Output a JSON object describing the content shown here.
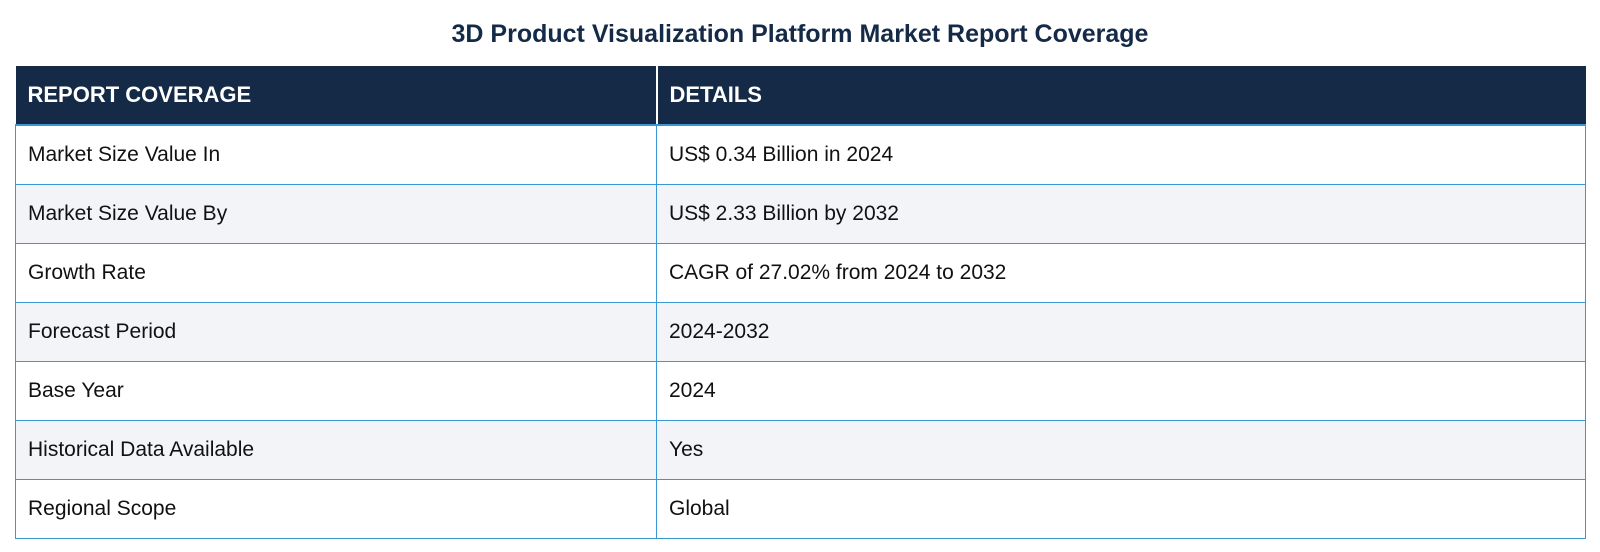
{
  "title": "3D Product Visualization Platform Market Report Coverage",
  "table": {
    "headers": [
      "REPORT COVERAGE",
      "DETAILS"
    ],
    "rows": [
      [
        "Market Size Value In",
        "US$ 0.34 Billion in 2024"
      ],
      [
        "Market Size Value By",
        "US$ 2.33 Billion by 2032"
      ],
      [
        "Growth Rate",
        "CAGR of 27.02% from 2024 to 2032"
      ],
      [
        "Forecast Period",
        "2024-2032"
      ],
      [
        "Base Year",
        "2024"
      ],
      [
        "Historical Data Available",
        "Yes"
      ],
      [
        "Regional Scope",
        "Global"
      ]
    ]
  },
  "colors": {
    "header_bg": "#142a47",
    "header_text": "#ffffff",
    "border": "#3a97d4",
    "row_alt_bg": "#f2f4f8"
  }
}
